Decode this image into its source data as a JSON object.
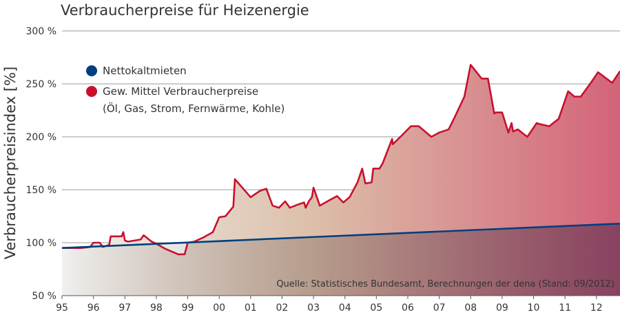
{
  "chart_data": {
    "type": "area",
    "title": "Verbraucherpreise für Heizenergie",
    "ylabel": "Verbraucherpreisindex [%]",
    "xlabel": "",
    "xlim": [
      1995,
      2012.75
    ],
    "ylim": [
      50,
      300
    ],
    "y_ticks": [
      {
        "value": 50,
        "label": "50 %"
      },
      {
        "value": 100,
        "label": "100 %"
      },
      {
        "value": 150,
        "label": "150 %"
      },
      {
        "value": 200,
        "label": "200 %"
      },
      {
        "value": 250,
        "label": "250 %"
      },
      {
        "value": 300,
        "label": "300 %"
      }
    ],
    "x_ticks": [
      {
        "value": 1995,
        "label": "95"
      },
      {
        "value": 1996,
        "label": "96"
      },
      {
        "value": 1997,
        "label": "97"
      },
      {
        "value": 1998,
        "label": "98"
      },
      {
        "value": 1999,
        "label": "99"
      },
      {
        "value": 2000,
        "label": "00"
      },
      {
        "value": 2001,
        "label": "01"
      },
      {
        "value": 2002,
        "label": "02"
      },
      {
        "value": 2003,
        "label": "03"
      },
      {
        "value": 2004,
        "label": "04"
      },
      {
        "value": 2005,
        "label": "05"
      },
      {
        "value": 2006,
        "label": "06"
      },
      {
        "value": 2007,
        "label": "07"
      },
      {
        "value": 2008,
        "label": "08"
      },
      {
        "value": 2009,
        "label": "09"
      },
      {
        "value": 2010,
        "label": "10"
      },
      {
        "value": 2011,
        "label": "11"
      },
      {
        "value": 2012,
        "label": "12"
      }
    ],
    "grid": true,
    "legend": {
      "placement": "top-left",
      "entries": [
        {
          "label": "Nettokaltmieten",
          "color": "#003f7f"
        },
        {
          "label": "Gew. Mittel Verbraucherpreise",
          "sublabel": "(Öl, Gas, Strom, Fernwärme, Kohle)",
          "color": "#c8102e"
        }
      ]
    },
    "annotation": "Quelle: Statistisches Bundesamt, Berechnungen der dena (Stand: 09/2012)",
    "series": [
      {
        "name": "Nettokaltmieten",
        "color": "#003f7f",
        "x": [
          1995,
          2012.75
        ],
        "y": [
          95,
          118
        ]
      },
      {
        "name": "Gew. Mittel Verbraucherpreise",
        "color": "#c8102e",
        "x": [
          1995,
          1995.3,
          1995.6,
          1995.9,
          1996.0,
          1996.2,
          1996.3,
          1996.5,
          1996.55,
          1996.9,
          1996.95,
          1997.0,
          1997.1,
          1997.3,
          1997.5,
          1997.6,
          1997.85,
          1998.0,
          1998.3,
          1998.7,
          1998.9,
          1999.0,
          1999.2,
          1999.5,
          1999.8,
          2000.0,
          2000.2,
          2000.45,
          2000.5,
          2001.0,
          2001.3,
          2001.5,
          2001.7,
          2001.9,
          2002.1,
          2002.25,
          2002.5,
          2002.7,
          2002.75,
          2002.85,
          2002.95,
          2003.0,
          2003.2,
          2003.5,
          2003.75,
          2003.95,
          2004.15,
          2004.4,
          2004.55,
          2004.65,
          2004.85,
          2004.9,
          2005.1,
          2005.2,
          2005.5,
          2005.52,
          2005.8,
          2006.1,
          2006.35,
          2006.75,
          2007.0,
          2007.3,
          2007.5,
          2007.8,
          2008.0,
          2008.35,
          2008.55,
          2008.75,
          2008.8,
          2009.0,
          2009.2,
          2009.3,
          2009.35,
          2009.5,
          2009.8,
          2010.1,
          2010.2,
          2010.5,
          2010.8,
          2011.1,
          2011.3,
          2011.5,
          2011.8,
          2012.05,
          2012.5,
          2012.75
        ],
        "y": [
          95,
          95,
          95,
          96,
          100,
          100,
          96,
          98,
          106,
          106,
          110,
          102,
          101,
          102,
          103,
          107,
          101,
          99,
          94,
          89,
          89,
          100,
          101,
          105,
          110,
          124,
          125,
          134,
          160,
          143,
          149,
          151,
          135,
          133,
          139,
          133,
          136,
          138,
          133,
          139,
          143,
          152,
          135,
          140,
          144,
          138,
          143,
          157,
          170,
          156,
          157,
          170,
          170,
          175,
          198,
          193,
          201,
          210,
          210,
          200,
          204,
          207,
          219,
          238,
          268,
          255,
          255,
          222,
          223,
          223,
          204,
          213,
          205,
          207,
          200,
          213,
          212,
          210,
          217,
          243,
          238,
          238,
          250,
          261,
          251,
          262
        ]
      }
    ]
  }
}
